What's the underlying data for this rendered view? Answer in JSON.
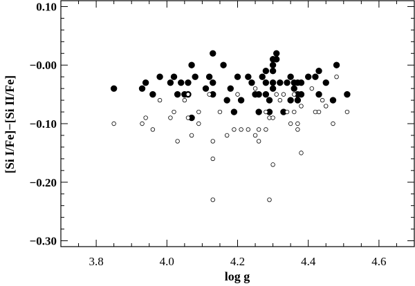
{
  "chart_data": {
    "type": "scatter",
    "xlabel": "log g",
    "ylabel": "[Si I/Fe]−[Si II/Fe]",
    "xlim": [
      3.7,
      4.7
    ],
    "ylim": [
      -0.31,
      0.11
    ],
    "xticks": [
      3.8,
      4.0,
      4.2,
      4.4,
      4.6
    ],
    "xtick_labels": [
      "3.8",
      "4.0",
      "4.2",
      "4.4",
      "4.6"
    ],
    "yticks": [
      0.1,
      0.0,
      -0.1,
      -0.2,
      -0.3
    ],
    "ytick_labels": [
      "0.10",
      "−0.00",
      "−0.10",
      "−0.20",
      "−0.30"
    ],
    "grid": false,
    "series": [
      {
        "marker": "filled-circle",
        "color": "#000000",
        "points": [
          [
            3.85,
            -0.04
          ],
          [
            3.93,
            -0.04
          ],
          [
            3.94,
            -0.03
          ],
          [
            3.96,
            -0.05
          ],
          [
            3.98,
            -0.02
          ],
          [
            4.01,
            -0.03
          ],
          [
            4.02,
            -0.02
          ],
          [
            4.03,
            -0.05
          ],
          [
            4.04,
            -0.03
          ],
          [
            4.05,
            -0.05
          ],
          [
            4.06,
            -0.03
          ],
          [
            4.06,
            -0.05
          ],
          [
            4.07,
            0.0
          ],
          [
            4.07,
            -0.09
          ],
          [
            4.08,
            -0.02
          ],
          [
            4.11,
            -0.04
          ],
          [
            4.12,
            -0.02
          ],
          [
            4.13,
            0.02
          ],
          [
            4.13,
            -0.03
          ],
          [
            4.13,
            -0.05
          ],
          [
            4.16,
            0.0
          ],
          [
            4.17,
            -0.06
          ],
          [
            4.18,
            -0.04
          ],
          [
            4.19,
            -0.08
          ],
          [
            4.2,
            -0.02
          ],
          [
            4.21,
            -0.06
          ],
          [
            4.23,
            -0.02
          ],
          [
            4.24,
            -0.03
          ],
          [
            4.25,
            -0.05
          ],
          [
            4.26,
            -0.08
          ],
          [
            4.26,
            -0.05
          ],
          [
            4.27,
            -0.02
          ],
          [
            4.28,
            -0.01
          ],
          [
            4.28,
            -0.03
          ],
          [
            4.28,
            -0.05
          ],
          [
            4.29,
            -0.06
          ],
          [
            4.29,
            -0.08
          ],
          [
            4.3,
            0.01
          ],
          [
            4.3,
            0.0
          ],
          [
            4.3,
            -0.01
          ],
          [
            4.3,
            -0.03
          ],
          [
            4.3,
            -0.04
          ],
          [
            4.31,
            0.02
          ],
          [
            4.31,
            0.01
          ],
          [
            4.32,
            -0.03
          ],
          [
            4.33,
            -0.08
          ],
          [
            4.34,
            -0.03
          ],
          [
            4.35,
            -0.02
          ],
          [
            4.35,
            -0.06
          ],
          [
            4.36,
            -0.03
          ],
          [
            4.36,
            -0.04
          ],
          [
            4.37,
            -0.05
          ],
          [
            4.37,
            -0.06
          ],
          [
            4.37,
            -0.03
          ],
          [
            4.38,
            -0.05
          ],
          [
            4.38,
            -0.03
          ],
          [
            4.4,
            -0.02
          ],
          [
            4.42,
            -0.02
          ],
          [
            4.43,
            -0.05
          ],
          [
            4.43,
            -0.01
          ],
          [
            4.45,
            -0.03
          ],
          [
            4.47,
            -0.06
          ],
          [
            4.48,
            0.0
          ],
          [
            4.51,
            -0.05
          ]
        ]
      },
      {
        "marker": "open-circle",
        "color": "#000000",
        "points": [
          [
            3.85,
            -0.1
          ],
          [
            3.93,
            -0.1
          ],
          [
            3.94,
            -0.09
          ],
          [
            3.96,
            -0.11
          ],
          [
            3.98,
            -0.06
          ],
          [
            4.01,
            -0.09
          ],
          [
            4.02,
            -0.08
          ],
          [
            4.03,
            -0.13
          ],
          [
            4.05,
            -0.06
          ],
          [
            4.06,
            -0.05
          ],
          [
            4.06,
            -0.09
          ],
          [
            4.07,
            -0.12
          ],
          [
            4.09,
            -0.08
          ],
          [
            4.09,
            -0.1
          ],
          [
            4.12,
            -0.05
          ],
          [
            4.13,
            -0.13
          ],
          [
            4.13,
            -0.16
          ],
          [
            4.13,
            -0.23
          ],
          [
            4.15,
            -0.08
          ],
          [
            4.17,
            -0.12
          ],
          [
            4.19,
            -0.11
          ],
          [
            4.2,
            -0.05
          ],
          [
            4.21,
            -0.11
          ],
          [
            4.23,
            -0.11
          ],
          [
            4.25,
            -0.04
          ],
          [
            4.25,
            -0.12
          ],
          [
            4.26,
            -0.11
          ],
          [
            4.26,
            -0.13
          ],
          [
            4.28,
            -0.11
          ],
          [
            4.28,
            -0.08
          ],
          [
            4.29,
            -0.09
          ],
          [
            4.29,
            -0.23
          ],
          [
            4.3,
            -0.09
          ],
          [
            4.3,
            -0.17
          ],
          [
            4.31,
            -0.05
          ],
          [
            4.32,
            -0.06
          ],
          [
            4.33,
            -0.05
          ],
          [
            4.34,
            -0.08
          ],
          [
            4.35,
            -0.1
          ],
          [
            4.36,
            -0.08
          ],
          [
            4.36,
            -0.05
          ],
          [
            4.37,
            -0.1
          ],
          [
            4.37,
            -0.11
          ],
          [
            4.38,
            -0.07
          ],
          [
            4.38,
            -0.15
          ],
          [
            4.41,
            -0.04
          ],
          [
            4.42,
            -0.08
          ],
          [
            4.43,
            -0.08
          ],
          [
            4.44,
            -0.06
          ],
          [
            4.45,
            -0.07
          ],
          [
            4.47,
            -0.1
          ],
          [
            4.48,
            -0.02
          ],
          [
            4.51,
            -0.08
          ]
        ]
      }
    ]
  }
}
